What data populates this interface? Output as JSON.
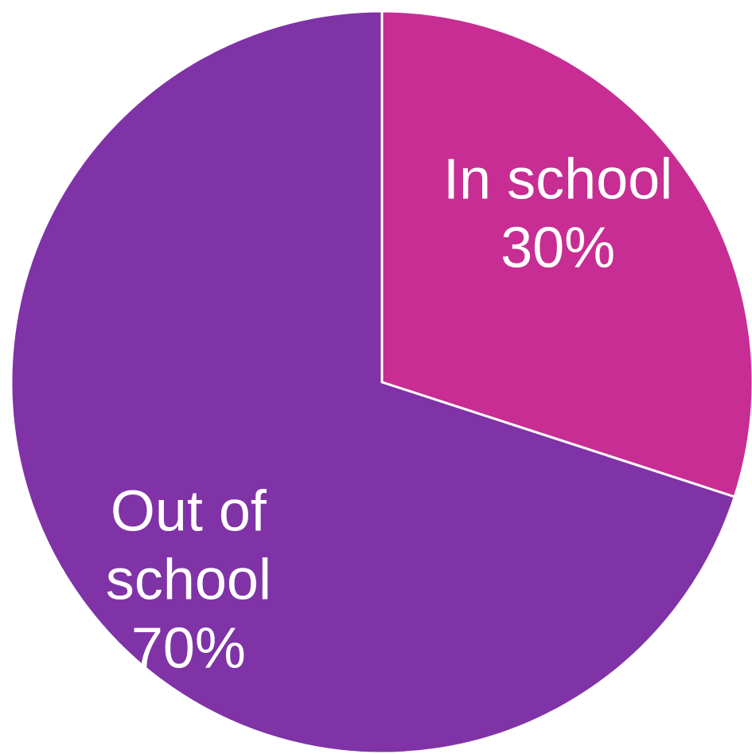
{
  "chart_data": {
    "type": "pie",
    "title": "",
    "slices": [
      {
        "label_lines": [
          "In school",
          "30%"
        ],
        "category": "In school",
        "value": 30,
        "color": "#C72D93"
      },
      {
        "label_lines": [
          "Out of",
          "school",
          "70%"
        ],
        "category": "Out of school",
        "value": 70,
        "color": "#7F33A6"
      }
    ],
    "start_angle_deg": 0,
    "direction": "clockwise",
    "legend": "none",
    "labels_inside": true
  }
}
